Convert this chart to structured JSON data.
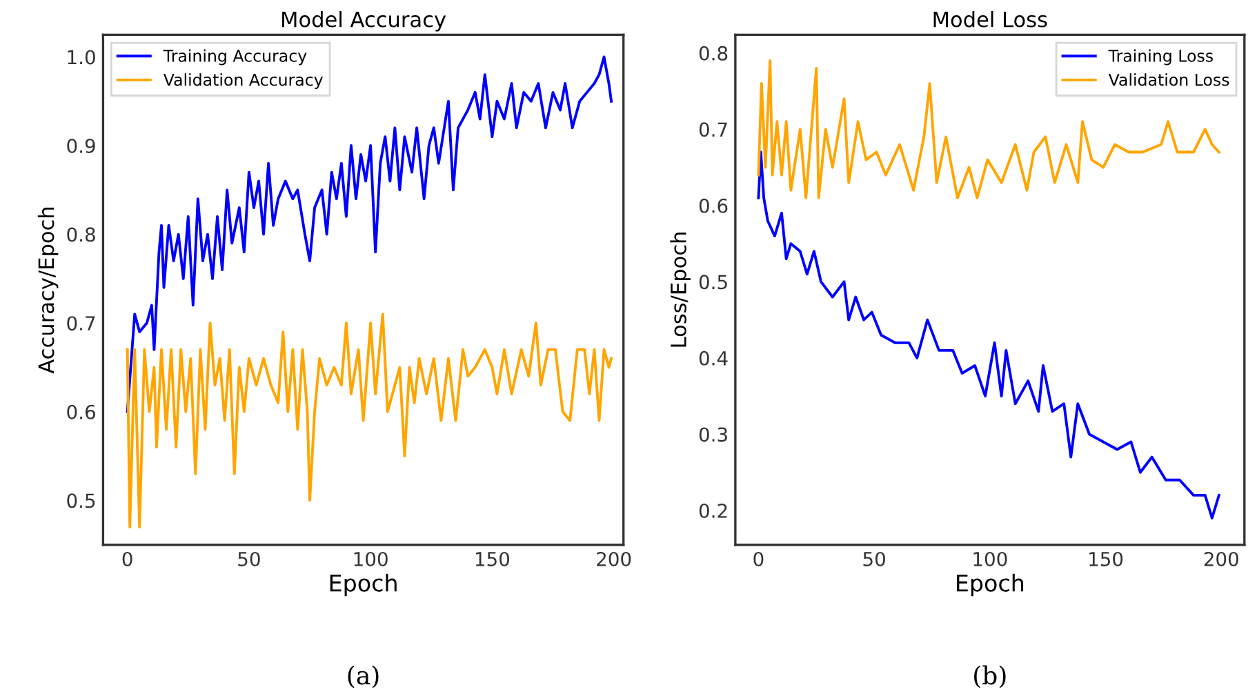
{
  "chart_data": [
    {
      "type": "line",
      "title": "Model Accuracy",
      "xlabel": "Epoch",
      "ylabel": "Accuracy/Epoch",
      "annotations": [
        "(a)"
      ],
      "legend": "top left",
      "grid": false,
      "xlim": [
        -10,
        204
      ],
      "ylim": [
        0.45,
        1.025
      ],
      "xticks": [
        0,
        50,
        100,
        150,
        200
      ],
      "yticks": [
        0.5,
        0.6,
        0.7,
        0.8,
        0.9,
        {
          "value": 1.0,
          "label": "1.0"
        }
      ],
      "series": [
        {
          "name": "Training Accuracy",
          "color": "#0000ff",
          "x": [
            0,
            3,
            5,
            8,
            10,
            11,
            13,
            14,
            15,
            17,
            19,
            21,
            23,
            25,
            27,
            29,
            31,
            33,
            35,
            37,
            39,
            41,
            43,
            46,
            48,
            50,
            52,
            54,
            56,
            58,
            60,
            62,
            65,
            68,
            70,
            73,
            75,
            77,
            80,
            82,
            84,
            86,
            88,
            90,
            92,
            94,
            96,
            98,
            100,
            102,
            104,
            106,
            108,
            110,
            112,
            114,
            117,
            119,
            122,
            124,
            126,
            128,
            132,
            134,
            136,
            140,
            143,
            145,
            147,
            150,
            152,
            155,
            158,
            160,
            163,
            166,
            169,
            172,
            175,
            178,
            180,
            183,
            186,
            189,
            192,
            194,
            196,
            198,
            199
          ],
          "values": [
            0.6,
            0.71,
            0.69,
            0.7,
            0.72,
            0.67,
            0.78,
            0.81,
            0.74,
            0.81,
            0.77,
            0.8,
            0.75,
            0.82,
            0.72,
            0.84,
            0.77,
            0.8,
            0.75,
            0.82,
            0.76,
            0.85,
            0.79,
            0.83,
            0.78,
            0.87,
            0.83,
            0.86,
            0.8,
            0.88,
            0.81,
            0.84,
            0.86,
            0.84,
            0.85,
            0.8,
            0.77,
            0.83,
            0.85,
            0.8,
            0.87,
            0.84,
            0.88,
            0.82,
            0.9,
            0.84,
            0.89,
            0.86,
            0.9,
            0.78,
            0.88,
            0.91,
            0.86,
            0.92,
            0.85,
            0.91,
            0.87,
            0.92,
            0.84,
            0.9,
            0.92,
            0.88,
            0.95,
            0.85,
            0.92,
            0.94,
            0.96,
            0.93,
            0.98,
            0.91,
            0.95,
            0.93,
            0.97,
            0.92,
            0.96,
            0.95,
            0.97,
            0.92,
            0.96,
            0.94,
            0.97,
            0.92,
            0.95,
            0.96,
            0.97,
            0.98,
            1.0,
            0.97,
            0.95
          ]
        },
        {
          "name": "Validation Accuracy",
          "color": "#ffa500",
          "x": [
            0,
            1,
            3,
            5,
            7,
            9,
            11,
            12,
            14,
            16,
            18,
            20,
            22,
            24,
            26,
            28,
            30,
            32,
            34,
            36,
            38,
            40,
            42,
            44,
            46,
            48,
            50,
            53,
            56,
            59,
            62,
            64,
            66,
            68,
            70,
            72,
            74,
            75,
            77,
            79,
            82,
            85,
            88,
            90,
            92,
            95,
            97,
            100,
            102,
            105,
            107,
            110,
            112,
            114,
            116,
            118,
            120,
            123,
            126,
            129,
            132,
            135,
            138,
            140,
            143,
            147,
            150,
            152,
            155,
            158,
            162,
            165,
            168,
            170,
            173,
            176,
            179,
            182,
            185,
            188,
            190,
            192,
            194,
            196,
            198,
            199
          ],
          "values": [
            0.67,
            0.47,
            0.67,
            0.47,
            0.67,
            0.6,
            0.65,
            0.56,
            0.67,
            0.58,
            0.67,
            0.56,
            0.67,
            0.6,
            0.66,
            0.53,
            0.67,
            0.58,
            0.7,
            0.63,
            0.66,
            0.59,
            0.67,
            0.53,
            0.65,
            0.6,
            0.66,
            0.63,
            0.66,
            0.63,
            0.61,
            0.69,
            0.6,
            0.67,
            0.58,
            0.67,
            0.6,
            0.5,
            0.6,
            0.66,
            0.63,
            0.65,
            0.63,
            0.7,
            0.62,
            0.67,
            0.59,
            0.7,
            0.62,
            0.71,
            0.6,
            0.63,
            0.65,
            0.55,
            0.65,
            0.61,
            0.66,
            0.62,
            0.66,
            0.59,
            0.66,
            0.59,
            0.67,
            0.64,
            0.65,
            0.67,
            0.65,
            0.62,
            0.67,
            0.62,
            0.67,
            0.64,
            0.7,
            0.63,
            0.67,
            0.67,
            0.6,
            0.59,
            0.67,
            0.67,
            0.62,
            0.67,
            0.59,
            0.67,
            0.65,
            0.66
          ]
        }
      ]
    },
    {
      "type": "line",
      "title": "Model Loss",
      "xlabel": "Epoch",
      "ylabel": "Loss/Epoch",
      "annotations": [
        "(b)"
      ],
      "legend": "top right",
      "grid": false,
      "xlim": [
        -10,
        210
      ],
      "ylim": [
        0.155,
        0.824
      ],
      "xticks": [
        0,
        50,
        100,
        150,
        200
      ],
      "yticks": [
        0.2,
        0.3,
        0.4,
        0.5,
        0.6,
        0.7,
        0.8
      ],
      "series": [
        {
          "name": "Training Loss",
          "color": "#0000ff",
          "x": [
            0,
            1,
            2.3,
            4,
            7,
            10,
            12,
            14,
            18,
            21,
            24,
            27,
            32,
            37,
            39,
            42,
            45.5,
            49,
            53,
            59,
            65,
            68.5,
            73,
            78,
            84,
            88,
            93.5,
            98,
            102,
            105,
            107,
            111,
            116.5,
            121,
            123,
            127,
            132,
            135,
            138,
            143,
            149,
            155,
            161,
            165,
            170,
            176,
            182,
            188,
            193,
            196,
            199
          ],
          "values": [
            0.61,
            0.67,
            0.61,
            0.58,
            0.56,
            0.59,
            0.53,
            0.55,
            0.54,
            0.51,
            0.54,
            0.5,
            0.48,
            0.5,
            0.45,
            0.48,
            0.45,
            0.46,
            0.43,
            0.42,
            0.42,
            0.4,
            0.45,
            0.41,
            0.41,
            0.38,
            0.39,
            0.35,
            0.42,
            0.35,
            0.41,
            0.34,
            0.37,
            0.33,
            0.39,
            0.33,
            0.34,
            0.27,
            0.34,
            0.3,
            0.29,
            0.28,
            0.29,
            0.25,
            0.27,
            0.24,
            0.24,
            0.22,
            0.22,
            0.19,
            0.22
          ]
        },
        {
          "name": "Validation Loss",
          "color": "#ffa500",
          "x": [
            0,
            1.3,
            3,
            5,
            6,
            8,
            10,
            12,
            14,
            18,
            20.5,
            25,
            26,
            29,
            32,
            37,
            39,
            43,
            46.5,
            51,
            55,
            61,
            67,
            71.5,
            74,
            77,
            81,
            86,
            91,
            94.5,
            99,
            105,
            111,
            116,
            119,
            124,
            128,
            133,
            138,
            140,
            144,
            149,
            154,
            160,
            166,
            174,
            177,
            181,
            188,
            193,
            196,
            199
          ],
          "values": [
            0.64,
            0.76,
            0.65,
            0.79,
            0.64,
            0.71,
            0.64,
            0.71,
            0.62,
            0.7,
            0.61,
            0.78,
            0.61,
            0.7,
            0.65,
            0.74,
            0.63,
            0.71,
            0.66,
            0.67,
            0.64,
            0.68,
            0.62,
            0.69,
            0.76,
            0.63,
            0.69,
            0.61,
            0.65,
            0.61,
            0.66,
            0.63,
            0.68,
            0.62,
            0.67,
            0.69,
            0.63,
            0.68,
            0.63,
            0.71,
            0.66,
            0.65,
            0.68,
            0.67,
            0.67,
            0.68,
            0.71,
            0.67,
            0.67,
            0.7,
            0.68,
            0.67
          ]
        }
      ]
    }
  ]
}
